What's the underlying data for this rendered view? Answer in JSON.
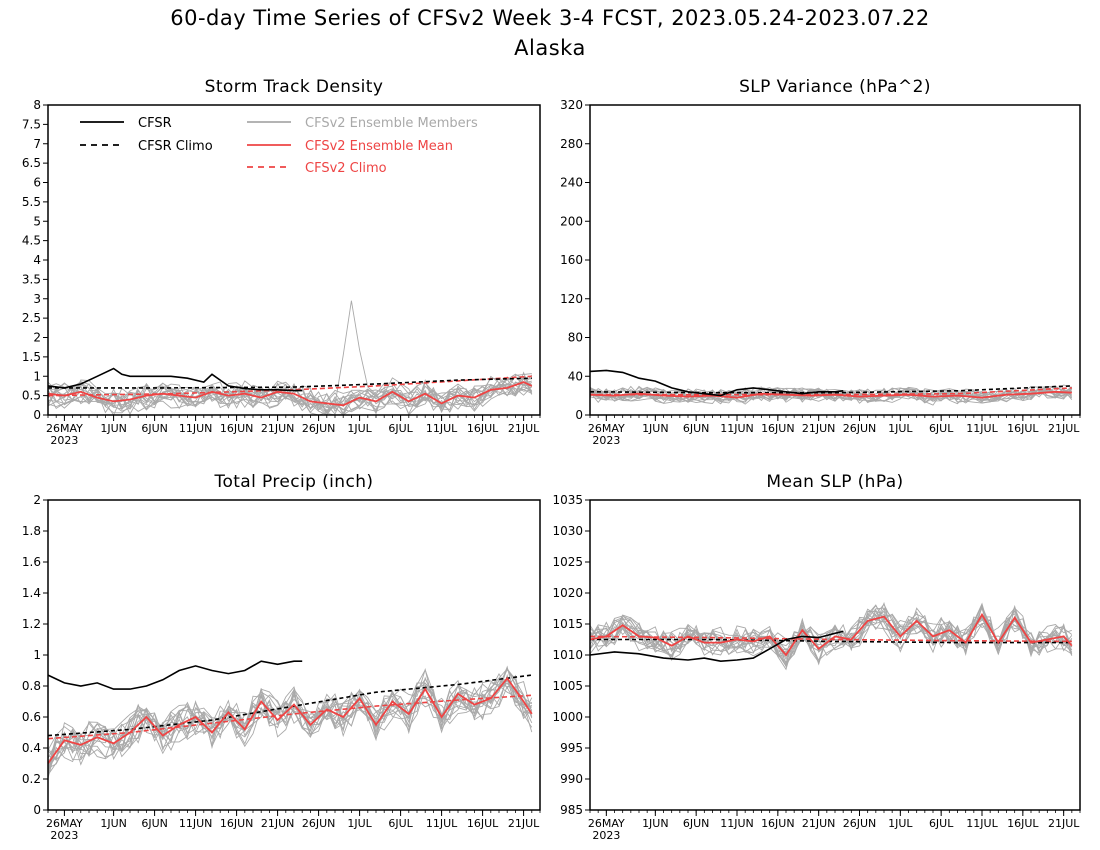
{
  "title": "60-day Time Series of CFSv2 Week 3-4 FCST, 2023.05.24-2023.07.22",
  "subtitle": "Alaska",
  "legend": {
    "cfsr": "CFSR",
    "cfsr_climo": "CFSR Climo",
    "members": "CFSv2 Ensemble Members",
    "mean": "CFSv2 Ensemble Mean",
    "climo": "CFSv2 Climo"
  },
  "colors": {
    "cfsr": "#000000",
    "members": "#a9a9a9",
    "mean": "#ee4444",
    "climo": "#ee4444"
  },
  "x_ticks": [
    {
      "day": 2,
      "label": "26MAY",
      "sub": "2023"
    },
    {
      "day": 8,
      "label": "1JUN"
    },
    {
      "day": 13,
      "label": "6JUN"
    },
    {
      "day": 18,
      "label": "11JUN"
    },
    {
      "day": 23,
      "label": "16JUN"
    },
    {
      "day": 28,
      "label": "21JUN"
    },
    {
      "day": 33,
      "label": "26JUN"
    },
    {
      "day": 38,
      "label": "1JUL"
    },
    {
      "day": 43,
      "label": "6JUL"
    },
    {
      "day": 48,
      "label": "11JUL"
    },
    {
      "day": 53,
      "label": "16JUL"
    },
    {
      "day": 58,
      "label": "21JUL"
    }
  ],
  "chart_data": [
    {
      "type": "line",
      "title": "Storm Track Density",
      "x_start_date": "2023-05-24",
      "ylim": [
        0,
        8
      ],
      "yticks": [
        0,
        0.5,
        1,
        1.5,
        2,
        2.5,
        3,
        3.5,
        4,
        4.5,
        5,
        5.5,
        6,
        6.5,
        7,
        7.5,
        8
      ],
      "cfsr": {
        "days": [
          0,
          2,
          4,
          6,
          8,
          9,
          10,
          11,
          13,
          15,
          17,
          19,
          20,
          21,
          22,
          24,
          26,
          28,
          30,
          31
        ],
        "values": [
          0.75,
          0.7,
          0.8,
          1.0,
          1.2,
          1.05,
          1.0,
          1.0,
          1.0,
          1.0,
          0.95,
          0.85,
          1.05,
          0.9,
          0.75,
          0.68,
          0.65,
          0.65,
          0.63,
          0.63
        ]
      },
      "cfsr_climo": {
        "days": [
          0,
          15,
          30,
          40,
          50,
          59
        ],
        "values": [
          0.7,
          0.7,
          0.72,
          0.8,
          0.9,
          0.95
        ]
      },
      "climo": {
        "days": [
          0,
          15,
          30,
          40,
          50,
          59
        ],
        "values": [
          0.5,
          0.55,
          0.65,
          0.75,
          0.88,
          1.0
        ]
      },
      "mean": {
        "days": [
          0,
          2,
          4,
          6,
          8,
          10,
          12,
          14,
          16,
          18,
          20,
          22,
          24,
          26,
          28,
          30,
          32,
          34,
          36,
          38,
          40,
          42,
          44,
          46,
          48,
          50,
          52,
          54,
          56,
          58,
          59
        ],
        "values": [
          0.55,
          0.5,
          0.6,
          0.45,
          0.35,
          0.4,
          0.5,
          0.55,
          0.5,
          0.45,
          0.6,
          0.5,
          0.55,
          0.45,
          0.6,
          0.55,
          0.35,
          0.3,
          0.25,
          0.45,
          0.35,
          0.6,
          0.35,
          0.55,
          0.3,
          0.5,
          0.45,
          0.65,
          0.7,
          0.85,
          0.75
        ]
      },
      "members": {
        "count": 16,
        "center": "mean",
        "spread": 0.35,
        "peak": {
          "day": 37,
          "value": 2.95
        }
      }
    },
    {
      "type": "line",
      "title": "SLP Variance (hPa^2)",
      "x_start_date": "2023-05-24",
      "ylim": [
        0,
        320
      ],
      "yticks": [
        0,
        40,
        80,
        120,
        160,
        200,
        240,
        280,
        320
      ],
      "cfsr": {
        "days": [
          0,
          2,
          4,
          6,
          8,
          10,
          12,
          14,
          16,
          18,
          20,
          22,
          24,
          26,
          28,
          30,
          31
        ],
        "values": [
          45,
          46,
          44,
          38,
          35,
          28,
          24,
          22,
          20,
          26,
          28,
          26,
          24,
          22,
          24,
          24,
          25
        ]
      },
      "cfsr_climo": {
        "days": [
          0,
          15,
          30,
          45,
          59
        ],
        "values": [
          24,
          23,
          23,
          25,
          30
        ]
      },
      "climo": {
        "days": [
          0,
          15,
          30,
          45,
          59
        ],
        "values": [
          21,
          21,
          21,
          22,
          28
        ]
      },
      "mean": {
        "days": [
          0,
          3,
          6,
          9,
          12,
          15,
          18,
          21,
          24,
          27,
          30,
          33,
          36,
          39,
          42,
          45,
          48,
          51,
          54,
          57,
          59
        ],
        "values": [
          21,
          20,
          22,
          20,
          19,
          20,
          18,
          22,
          21,
          20,
          21,
          19,
          20,
          21,
          19,
          20,
          18,
          21,
          22,
          24,
          23
        ]
      },
      "members": {
        "count": 16,
        "center": "mean",
        "spread": 8,
        "peak": null
      }
    },
    {
      "type": "line",
      "title": "Total Precip (inch)",
      "x_start_date": "2023-05-24",
      "ylim": [
        0,
        2
      ],
      "yticks": [
        0,
        0.2,
        0.4,
        0.6,
        0.8,
        1,
        1.2,
        1.4,
        1.6,
        1.8,
        2
      ],
      "cfsr": {
        "days": [
          0,
          2,
          4,
          6,
          8,
          10,
          12,
          14,
          16,
          18,
          20,
          22,
          24,
          26,
          28,
          30,
          31
        ],
        "values": [
          0.87,
          0.82,
          0.8,
          0.82,
          0.78,
          0.78,
          0.8,
          0.84,
          0.9,
          0.93,
          0.9,
          0.88,
          0.9,
          0.96,
          0.94,
          0.96,
          0.96
        ]
      },
      "cfsr_climo": {
        "days": [
          0,
          10,
          20,
          30,
          40,
          50,
          59
        ],
        "values": [
          0.48,
          0.52,
          0.58,
          0.67,
          0.76,
          0.81,
          0.87
        ]
      },
      "climo": {
        "days": [
          0,
          10,
          20,
          30,
          40,
          50,
          59
        ],
        "values": [
          0.46,
          0.5,
          0.56,
          0.62,
          0.67,
          0.71,
          0.74
        ]
      },
      "mean": {
        "days": [
          0,
          2,
          4,
          6,
          8,
          10,
          12,
          14,
          16,
          18,
          20,
          22,
          24,
          26,
          28,
          30,
          32,
          34,
          36,
          38,
          40,
          42,
          44,
          46,
          48,
          50,
          52,
          54,
          56,
          58,
          59
        ],
        "values": [
          0.3,
          0.45,
          0.42,
          0.47,
          0.43,
          0.5,
          0.6,
          0.48,
          0.55,
          0.6,
          0.5,
          0.63,
          0.52,
          0.7,
          0.58,
          0.68,
          0.55,
          0.65,
          0.6,
          0.72,
          0.55,
          0.7,
          0.62,
          0.78,
          0.6,
          0.75,
          0.68,
          0.72,
          0.85,
          0.7,
          0.62
        ]
      },
      "members": {
        "count": 16,
        "center": "mean",
        "spread": 0.12,
        "peak": null
      }
    },
    {
      "type": "line",
      "title": "Mean SLP (hPa)",
      "x_start_date": "2023-05-24",
      "ylim": [
        985,
        1035
      ],
      "yticks": [
        985,
        990,
        995,
        1000,
        1005,
        1010,
        1015,
        1020,
        1025,
        1030,
        1035
      ],
      "cfsr": {
        "days": [
          0,
          3,
          6,
          9,
          12,
          14,
          16,
          18,
          20,
          22,
          24,
          26,
          28,
          30,
          31
        ],
        "values": [
          1010,
          1010.5,
          1010.2,
          1009.5,
          1009.2,
          1009.5,
          1009,
          1009.2,
          1009.5,
          1011,
          1012.5,
          1013,
          1012.8,
          1013.5,
          1013.8
        ]
      },
      "cfsr_climo": {
        "days": [
          0,
          15,
          30,
          45,
          59
        ],
        "values": [
          1012.5,
          1012.5,
          1012.2,
          1012,
          1012
        ]
      },
      "climo": {
        "days": [
          0,
          15,
          30,
          45,
          59
        ],
        "values": [
          1013,
          1012.8,
          1012.5,
          1012.3,
          1012.2
        ]
      },
      "mean": {
        "days": [
          0,
          2,
          4,
          6,
          8,
          10,
          12,
          14,
          16,
          18,
          20,
          22,
          24,
          26,
          28,
          30,
          32,
          34,
          36,
          38,
          40,
          42,
          44,
          46,
          48,
          50,
          52,
          54,
          56,
          58,
          59
        ],
        "values": [
          1012.5,
          1013,
          1014.8,
          1013,
          1012.8,
          1011.5,
          1013,
          1012,
          1012,
          1012.5,
          1012.2,
          1013,
          1010,
          1014,
          1011,
          1013,
          1012.5,
          1015.5,
          1016.2,
          1013,
          1015.5,
          1013,
          1014,
          1012,
          1016.5,
          1012,
          1016,
          1012,
          1012.5,
          1013,
          1011.5
        ]
      },
      "members": {
        "count": 16,
        "center": "mean",
        "spread": 2.5,
        "peak": null
      }
    }
  ]
}
